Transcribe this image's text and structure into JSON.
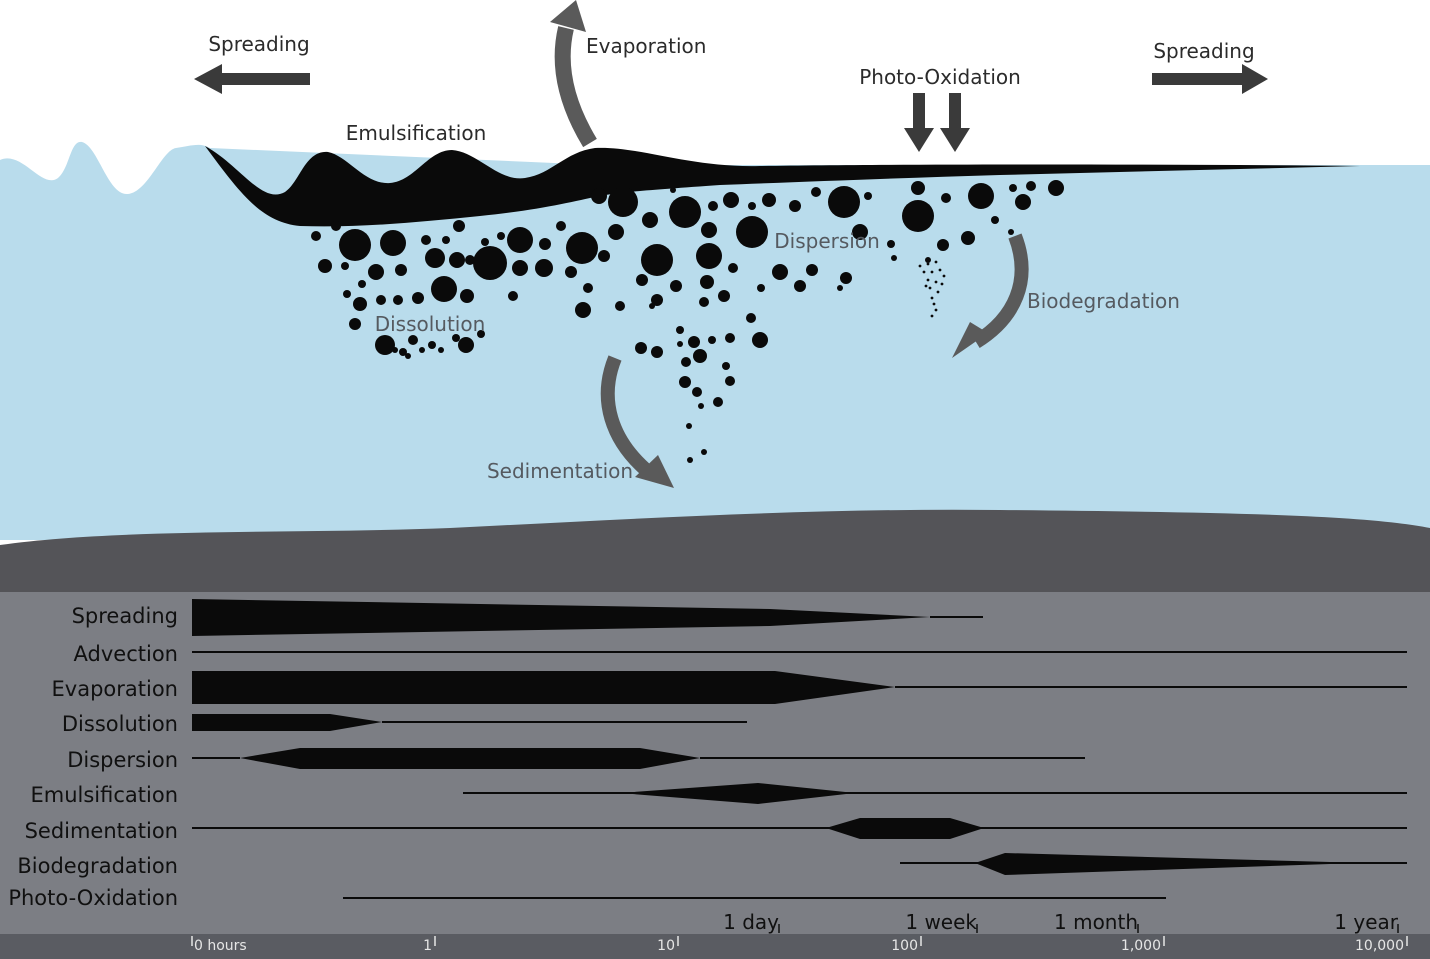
{
  "scene": {
    "labels": {
      "spreading_left": "Spreading",
      "evaporation": "Evaporation",
      "photo_oxidation": "Photo-Oxidation",
      "spreading_right": "Spreading",
      "emulsification": "Emulsification",
      "dispersion": "Dispersion",
      "dissolution": "Dissolution",
      "biodegradation": "Biodegradation",
      "sedimentation": "Sedimentation"
    },
    "colors": {
      "water": "#b9dcec",
      "oil": "#0a0a0a",
      "arrow": "#3a3a3a",
      "curved_arrow": "#5a5a5a",
      "seabed": "#545458",
      "timeline_bg": "#7c7e84",
      "axis_bar": "#5a5c62"
    }
  },
  "timeline": {
    "rows": [
      {
        "name": "Spreading"
      },
      {
        "name": "Advection"
      },
      {
        "name": "Evaporation"
      },
      {
        "name": "Dissolution"
      },
      {
        "name": "Dispersion"
      },
      {
        "name": "Emulsification"
      },
      {
        "name": "Sedimentation"
      },
      {
        "name": "Biodegradation"
      },
      {
        "name": "Photo-Oxidation"
      }
    ],
    "axis": {
      "tick_labels": [
        "0 hours",
        "1",
        "10",
        "100",
        "1,000",
        "10,000"
      ],
      "unit_labels": [
        "1 day",
        "1 week",
        "1 month",
        "1 year"
      ]
    }
  }
}
